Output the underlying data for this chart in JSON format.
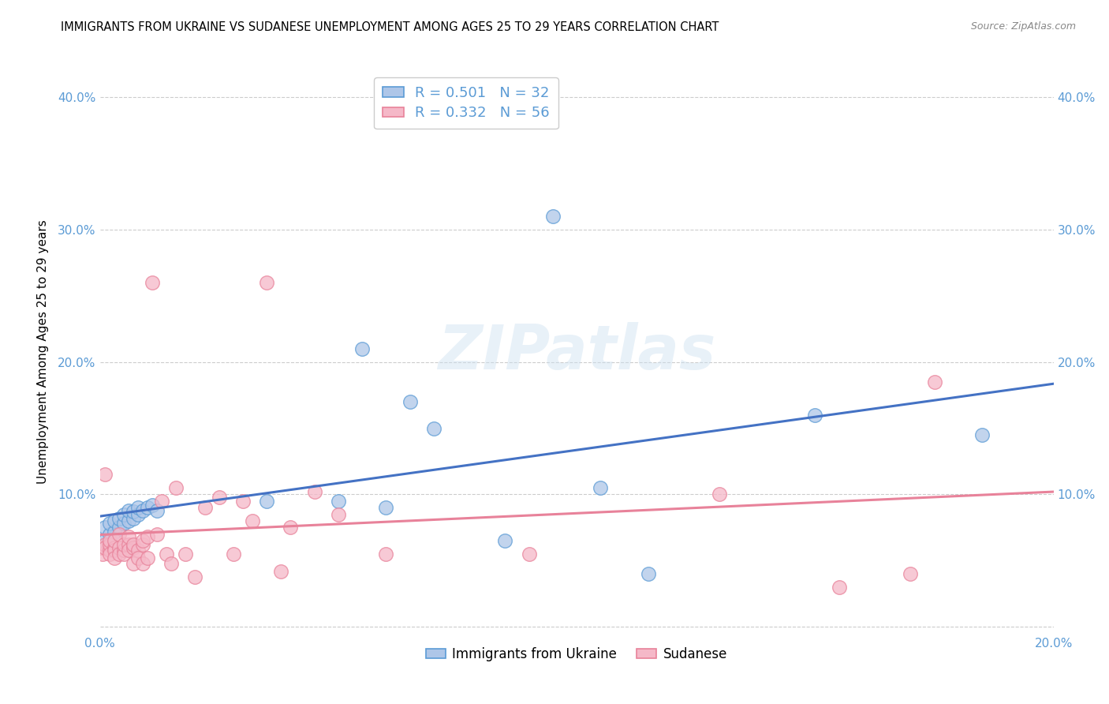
{
  "title": "IMMIGRANTS FROM UKRAINE VS SUDANESE UNEMPLOYMENT AMONG AGES 25 TO 29 YEARS CORRELATION CHART",
  "source": "Source: ZipAtlas.com",
  "ylabel": "Unemployment Among Ages 25 to 29 years",
  "xlim": [
    0.0,
    0.2
  ],
  "ylim": [
    -0.005,
    0.42
  ],
  "yticks": [
    0.0,
    0.1,
    0.2,
    0.3,
    0.4
  ],
  "ytick_labels": [
    "",
    "10.0%",
    "20.0%",
    "30.0%",
    "40.0%"
  ],
  "xticks": [
    0.0,
    0.05,
    0.1,
    0.15,
    0.2
  ],
  "xtick_labels": [
    "0.0%",
    "",
    "",
    "",
    "20.0%"
  ],
  "legend_labels": [
    "Immigrants from Ukraine",
    "Sudanese"
  ],
  "ukraine_color": "#aec6e8",
  "sudanese_color": "#f5b8c8",
  "ukraine_edge_color": "#5b9bd5",
  "sudanese_edge_color": "#e8829a",
  "ukraine_line_color": "#4472c4",
  "sudanese_line_color": "#e8829a",
  "R_ukraine": 0.501,
  "N_ukraine": 32,
  "R_sudanese": 0.332,
  "N_sudanese": 56,
  "ukraine_x": [
    0.001,
    0.001,
    0.002,
    0.002,
    0.003,
    0.003,
    0.004,
    0.004,
    0.005,
    0.005,
    0.006,
    0.006,
    0.007,
    0.007,
    0.008,
    0.008,
    0.009,
    0.01,
    0.011,
    0.012,
    0.035,
    0.05,
    0.055,
    0.06,
    0.065,
    0.07,
    0.085,
    0.095,
    0.105,
    0.115,
    0.15,
    0.185
  ],
  "ukraine_y": [
    0.065,
    0.075,
    0.07,
    0.078,
    0.072,
    0.08,
    0.075,
    0.082,
    0.078,
    0.085,
    0.08,
    0.088,
    0.082,
    0.087,
    0.085,
    0.09,
    0.088,
    0.09,
    0.092,
    0.088,
    0.095,
    0.095,
    0.21,
    0.09,
    0.17,
    0.15,
    0.065,
    0.31,
    0.105,
    0.04,
    0.16,
    0.145
  ],
  "sudanese_x": [
    0.0003,
    0.0005,
    0.001,
    0.001,
    0.001,
    0.002,
    0.002,
    0.002,
    0.002,
    0.003,
    0.003,
    0.003,
    0.003,
    0.004,
    0.004,
    0.004,
    0.005,
    0.005,
    0.005,
    0.006,
    0.006,
    0.006,
    0.007,
    0.007,
    0.007,
    0.008,
    0.008,
    0.009,
    0.009,
    0.009,
    0.01,
    0.01,
    0.011,
    0.012,
    0.013,
    0.014,
    0.015,
    0.016,
    0.018,
    0.02,
    0.022,
    0.025,
    0.028,
    0.03,
    0.032,
    0.035,
    0.038,
    0.04,
    0.045,
    0.05,
    0.06,
    0.09,
    0.13,
    0.155,
    0.17,
    0.175
  ],
  "sudanese_y": [
    0.06,
    0.055,
    0.062,
    0.06,
    0.115,
    0.058,
    0.062,
    0.065,
    0.055,
    0.06,
    0.058,
    0.065,
    0.052,
    0.06,
    0.07,
    0.055,
    0.058,
    0.055,
    0.062,
    0.062,
    0.058,
    0.068,
    0.06,
    0.062,
    0.048,
    0.058,
    0.052,
    0.062,
    0.048,
    0.065,
    0.068,
    0.052,
    0.26,
    0.07,
    0.095,
    0.055,
    0.048,
    0.105,
    0.055,
    0.038,
    0.09,
    0.098,
    0.055,
    0.095,
    0.08,
    0.26,
    0.042,
    0.075,
    0.102,
    0.085,
    0.055,
    0.055,
    0.1,
    0.03,
    0.04,
    0.185
  ],
  "watermark": "ZIPatlas",
  "background_color": "#ffffff",
  "grid_color": "#cccccc",
  "title_fontsize": 10.5,
  "tick_label_color": "#5b9bd5"
}
